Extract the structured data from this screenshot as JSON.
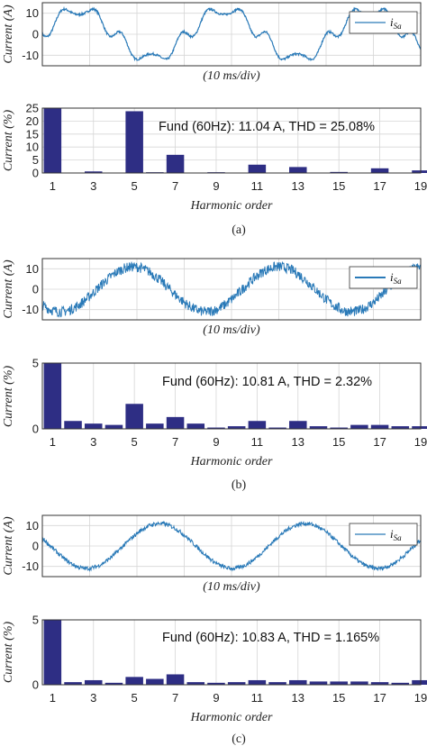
{
  "figure": {
    "panels": [
      {
        "caption": "(a)",
        "waveform": {
          "ylabel": "Current (A)",
          "xlabel": "(10 ms/div)",
          "legend": "i_Sa",
          "legend_main": "i",
          "legend_sub": "Sa",
          "yticks": [
            "10",
            "0",
            "-10"
          ]
        },
        "spectrum": {
          "ylabel": "Current (%)",
          "xlabel": "Harmonic order",
          "annotation": "Fund (60Hz): 11.04 A, THD = 25.08%",
          "yticks": [
            "25",
            "20",
            "15",
            "10",
            "5",
            "0"
          ],
          "xticks": [
            "1",
            "3",
            "5",
            "7",
            "9",
            "11",
            "13",
            "15",
            "17",
            "19"
          ]
        }
      },
      {
        "caption": "(b)",
        "waveform": {
          "ylabel": "Current (A)",
          "xlabel": "(10 ms/div)",
          "legend": "i_Sa",
          "legend_main": "i",
          "legend_sub": "Sa",
          "yticks": [
            "10",
            "0",
            "-10"
          ]
        },
        "spectrum": {
          "ylabel": "Current (%)",
          "xlabel": "Harmonic order",
          "annotation": "Fund (60Hz): 10.81 A, THD = 2.32%",
          "yticks": [
            "5",
            "0"
          ],
          "xticks": [
            "1",
            "3",
            "5",
            "7",
            "9",
            "11",
            "13",
            "15",
            "17",
            "19"
          ]
        }
      },
      {
        "caption": "(c)",
        "waveform": {
          "ylabel": "Current (A)",
          "xlabel": "(10 ms/div)",
          "legend": "i_Sa",
          "legend_main": "i",
          "legend_sub": "Sa",
          "yticks": [
            "10",
            "0",
            "-10"
          ]
        },
        "spectrum": {
          "ylabel": "Current (%)",
          "xlabel": "Harmonic order",
          "annotation": "Fund (60Hz): 10.83 A, THD = 1.165%",
          "yticks": [
            "5",
            "0"
          ],
          "xticks": [
            "1",
            "3",
            "5",
            "7",
            "9",
            "11",
            "13",
            "15",
            "17",
            "19"
          ]
        }
      }
    ],
    "colors": {
      "waveform": "#2a7ab8",
      "bars": "#2e2e84"
    }
  },
  "chart_data": [
    {
      "type": "line",
      "panel": "a",
      "ylabel": "Current (A)",
      "xlabel": "(10 ms/div)",
      "ylim": [
        -15,
        15
      ],
      "grid": true,
      "legend_position": "top-right",
      "series": [
        {
          "name": "i_Sa",
          "shape": "distorted sinusoid with flattened crests",
          "amplitude_A": 12,
          "noise_A": 0.5,
          "cycles_shown": 2.6,
          "phase_at_start_deg": 0
        }
      ]
    },
    {
      "type": "bar",
      "panel": "a",
      "ylabel": "Current (%)",
      "xlabel": "Harmonic order",
      "ylim": [
        0,
        25
      ],
      "grid": true,
      "annotation": "Fund (60Hz): 11.04 A, THD = 25.08%",
      "categories": [
        1,
        2,
        3,
        4,
        5,
        6,
        7,
        8,
        9,
        10,
        11,
        12,
        13,
        14,
        15,
        16,
        17,
        18,
        19
      ],
      "values": [
        25,
        0.1,
        0.6,
        0.1,
        23.8,
        0.3,
        7,
        0.1,
        0.3,
        0.1,
        3.2,
        0.1,
        2.3,
        0.1,
        0.4,
        0.1,
        1.8,
        0.1,
        1.0
      ]
    },
    {
      "type": "line",
      "panel": "b",
      "ylabel": "Current (A)",
      "xlabel": "(10 ms/div)",
      "ylim": [
        -15,
        15
      ],
      "grid": true,
      "legend_position": "top-right",
      "series": [
        {
          "name": "i_Sa",
          "shape": "noisy sinusoid",
          "amplitude_A": 11,
          "noise_A": 2.5,
          "cycles_shown": 2.6,
          "phase_at_start_deg": 225
        }
      ]
    },
    {
      "type": "bar",
      "panel": "b",
      "ylabel": "Current (%)",
      "xlabel": "Harmonic order",
      "ylim": [
        0,
        5
      ],
      "grid": true,
      "annotation": "Fund (60Hz): 10.81 A, THD = 2.32%",
      "categories": [
        1,
        2,
        3,
        4,
        5,
        6,
        7,
        8,
        9,
        10,
        11,
        12,
        13,
        14,
        15,
        16,
        17,
        18,
        19
      ],
      "values": [
        5,
        0.6,
        0.4,
        0.3,
        1.9,
        0.4,
        0.9,
        0.4,
        0.1,
        0.2,
        0.6,
        0.1,
        0.6,
        0.2,
        0.1,
        0.3,
        0.3,
        0.2,
        0.2
      ]
    },
    {
      "type": "line",
      "panel": "c",
      "ylabel": "Current (A)",
      "xlabel": "(10 ms/div)",
      "ylim": [
        -15,
        15
      ],
      "grid": true,
      "legend_position": "top-right",
      "series": [
        {
          "name": "i_Sa",
          "shape": "sinusoid with small ripple",
          "amplitude_A": 11,
          "noise_A": 1.0,
          "cycles_shown": 2.6,
          "phase_at_start_deg": 160
        }
      ]
    },
    {
      "type": "bar",
      "panel": "c",
      "ylabel": "Current (%)",
      "xlabel": "Harmonic order",
      "ylim": [
        0,
        5
      ],
      "grid": true,
      "annotation": "Fund (60Hz): 10.83 A, THD = 1.165%",
      "categories": [
        1,
        2,
        3,
        4,
        5,
        6,
        7,
        8,
        9,
        10,
        11,
        12,
        13,
        14,
        15,
        16,
        17,
        18,
        19
      ],
      "values": [
        5,
        0.2,
        0.35,
        0.15,
        0.6,
        0.45,
        0.8,
        0.2,
        0.15,
        0.2,
        0.35,
        0.2,
        0.35,
        0.25,
        0.25,
        0.25,
        0.2,
        0.15,
        0.35
      ]
    }
  ]
}
